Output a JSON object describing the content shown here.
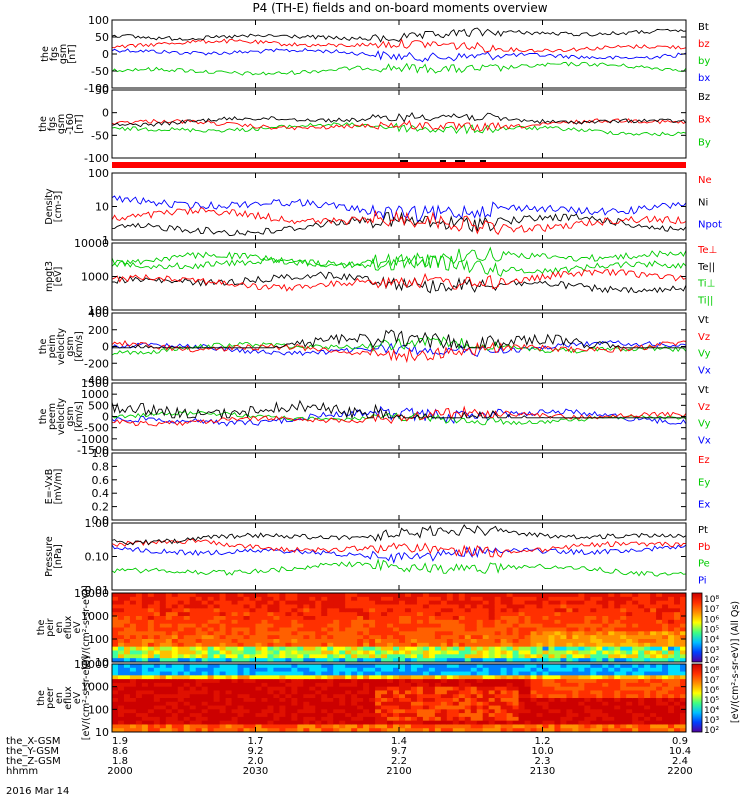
{
  "title": "P4 (TH-E) fields and on-board moments overview",
  "date": "2016 Mar 14",
  "xaxis": {
    "rows": [
      {
        "label": "the_X-GSM",
        "values": [
          "1.9",
          "1.7",
          "1.4",
          "1.2",
          "0.9"
        ]
      },
      {
        "label": "the_Y-GSM",
        "values": [
          "8.6",
          "9.2",
          "9.7",
          "10.0",
          "10.4"
        ]
      },
      {
        "label": "the_Z-GSM",
        "values": [
          "1.8",
          "2.0",
          "2.2",
          "2.3",
          "2.4"
        ]
      },
      {
        "label": "hhmm",
        "values": [
          "2000",
          "2030",
          "2100",
          "2130",
          "2200"
        ]
      }
    ]
  },
  "colorbar": {
    "label": "[eV/(cm²-s-sr-eV)] (All Qs)",
    "top_ticks": [
      "10⁸",
      "10⁷",
      "10⁶",
      "10⁵",
      "10⁴",
      "10³",
      "10²"
    ],
    "bottom_ticks": [
      "10⁸",
      "10⁷",
      "10⁶",
      "10⁵",
      "10⁴",
      "10³",
      "10²"
    ]
  },
  "chart_data": [
    {
      "type": "line",
      "panel": 1,
      "ylabel": [
        "the",
        "fgs",
        "gsm",
        "[nT]"
      ],
      "ylim": [
        -100,
        100
      ],
      "yticks": [
        "100",
        "50",
        "0",
        "-50",
        "-100"
      ],
      "series": [
        {
          "name": "Bt",
          "color": "#000000"
        },
        {
          "name": "bz",
          "color": "#ff0000"
        },
        {
          "name": "by",
          "color": "#00cc00"
        },
        {
          "name": "bx",
          "color": "#0000ff"
        }
      ]
    },
    {
      "type": "line",
      "panel": 2,
      "ylabel": [
        "the",
        "fgs",
        "gsm",
        "-160",
        "[nT]"
      ],
      "ylim": [
        -150,
        50
      ],
      "yticks": [
        "50",
        "0",
        "-50",
        "-100"
      ],
      "series": [
        {
          "name": "Bz",
          "color": "#000000"
        },
        {
          "name": "Bx",
          "color": "#ff0000"
        },
        {
          "name": "By",
          "color": "#00cc00"
        }
      ]
    },
    {
      "type": "line",
      "panel": 3,
      "ylabel": [
        "Density",
        "[cm-3]"
      ],
      "ylim": [
        1,
        100
      ],
      "log": true,
      "yticks": [
        "100",
        "10",
        "1"
      ],
      "series": [
        {
          "name": "Ne",
          "color": "#ff0000"
        },
        {
          "name": "Ni",
          "color": "#000000"
        },
        {
          "name": "Npot",
          "color": "#0000ff"
        }
      ]
    },
    {
      "type": "line",
      "panel": 4,
      "ylabel": [
        "mpgt3",
        "[eV]"
      ],
      "ylim": [
        10,
        10000
      ],
      "log": true,
      "yticks": [
        "10000",
        "1000",
        "100"
      ],
      "series": [
        {
          "name": "Te⊥",
          "color": "#ff0000"
        },
        {
          "name": "Te||",
          "color": "#000000"
        },
        {
          "name": "Ti⊥",
          "color": "#00cc00"
        },
        {
          "name": "Ti||",
          "color": "#00cc00"
        }
      ]
    },
    {
      "type": "line",
      "panel": 5,
      "ylabel": [
        "the",
        "peim",
        "velocity",
        "gsm",
        "[km/s]"
      ],
      "ylim": [
        -400,
        400
      ],
      "yticks": [
        "400",
        "200",
        "0",
        "-200",
        "-400"
      ],
      "series": [
        {
          "name": "Vt",
          "color": "#000000"
        },
        {
          "name": "Vz",
          "color": "#ff0000"
        },
        {
          "name": "Vy",
          "color": "#00cc00"
        },
        {
          "name": "Vx",
          "color": "#0000ff"
        }
      ]
    },
    {
      "type": "line",
      "panel": 6,
      "ylabel": [
        "the",
        "peem",
        "velocity",
        "gsm",
        "[km/s]"
      ],
      "ylim": [
        -1500,
        1500
      ],
      "yticks": [
        "1500",
        "1000",
        "500",
        "0",
        "-500",
        "-1000",
        "-1500"
      ],
      "series": [
        {
          "name": "Vt",
          "color": "#000000"
        },
        {
          "name": "Vz",
          "color": "#ff0000"
        },
        {
          "name": "Vy",
          "color": "#00cc00"
        },
        {
          "name": "Vx",
          "color": "#0000ff"
        }
      ]
    },
    {
      "type": "line",
      "panel": 7,
      "ylabel": [
        "E=-VxB",
        "[mV/m]"
      ],
      "ylim": [
        0,
        1
      ],
      "yticks": [
        "1.0",
        "0.8",
        "0.6",
        "0.4",
        "0.2",
        "0.0"
      ],
      "series": [
        {
          "name": "Ez",
          "color": "#ff0000"
        },
        {
          "name": "Ey",
          "color": "#00cc00"
        },
        {
          "name": "Ex",
          "color": "#0000ff"
        }
      ]
    },
    {
      "type": "line",
      "panel": 8,
      "ylabel": [
        "Pressure",
        "[nPa]"
      ],
      "ylim": [
        0.01,
        5
      ],
      "log": true,
      "yticks": [
        "1.00",
        "0.10",
        "0.01"
      ],
      "series": [
        {
          "name": "Pt",
          "color": "#000000"
        },
        {
          "name": "Pb",
          "color": "#ff0000"
        },
        {
          "name": "Pe",
          "color": "#00cc00"
        },
        {
          "name": "Pi",
          "color": "#0000ff"
        }
      ]
    },
    {
      "type": "heatmap",
      "panel": 9,
      "ylabel": [
        "the",
        "peir",
        "en",
        "eflux",
        "eV",
        "[eV/(cm²-s-sr-eV)]"
      ],
      "ylim": [
        10,
        10000
      ],
      "log": true,
      "yticks": [
        "10000",
        "1000",
        "100",
        "10"
      ]
    },
    {
      "type": "heatmap",
      "panel": 10,
      "ylabel": [
        "the",
        "peer",
        "en",
        "eflux",
        "eV",
        "[eV/(cm²-s-sr-eV)]"
      ],
      "ylim": [
        10,
        10000
      ],
      "log": true,
      "yticks": [
        "10000",
        "1000",
        "100",
        "10"
      ]
    }
  ]
}
